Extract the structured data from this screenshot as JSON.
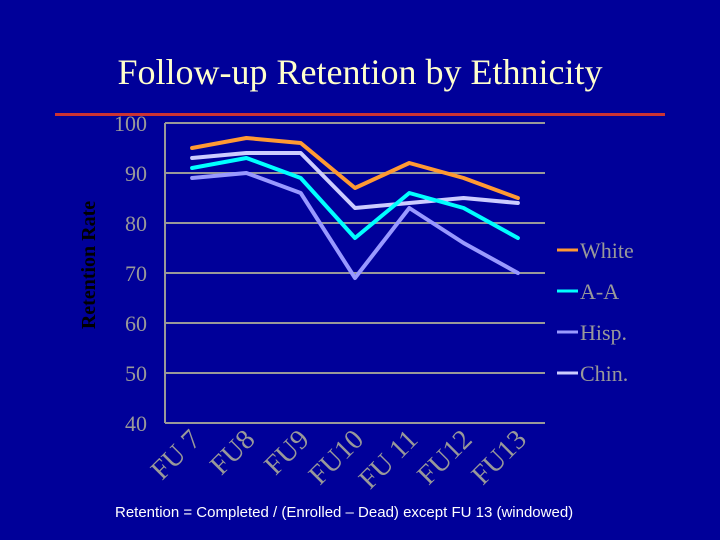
{
  "slide": {
    "title": "Follow-up Retention by Ethnicity",
    "footnote": "Retention = Completed / (Enrolled – Dead) except FU 13 (windowed)"
  },
  "colors": {
    "background": "#000099",
    "title": "#ffffcc",
    "rule": "#cc3333",
    "grid": "#999999",
    "axis_text": "#999999",
    "ylabel": "#000000"
  },
  "chart_data": {
    "type": "line",
    "title": "",
    "xlabel": "",
    "ylabel": "Retention Rate",
    "ylim": [
      40,
      100
    ],
    "yticks": [
      100,
      90,
      80,
      70,
      60,
      50,
      40
    ],
    "grid": true,
    "legend_position": "right",
    "categories": [
      "FU 7",
      "FU8",
      "FU9",
      "FU10",
      "FU 11",
      "FU12",
      "FU13"
    ],
    "series": [
      {
        "name": "White",
        "color": "#ff9933",
        "values": [
          95,
          97,
          96,
          87,
          92,
          89,
          85
        ]
      },
      {
        "name": "A-A",
        "color": "#00ffff",
        "values": [
          91,
          93,
          89,
          77,
          86,
          83,
          77
        ]
      },
      {
        "name": "Hisp.",
        "color": "#9999ff",
        "values": [
          89,
          90,
          86,
          69,
          83,
          76,
          70
        ]
      },
      {
        "name": "Chin.",
        "color": "#ccccff",
        "values": [
          93,
          94,
          94,
          83,
          84,
          85,
          84
        ]
      }
    ]
  }
}
